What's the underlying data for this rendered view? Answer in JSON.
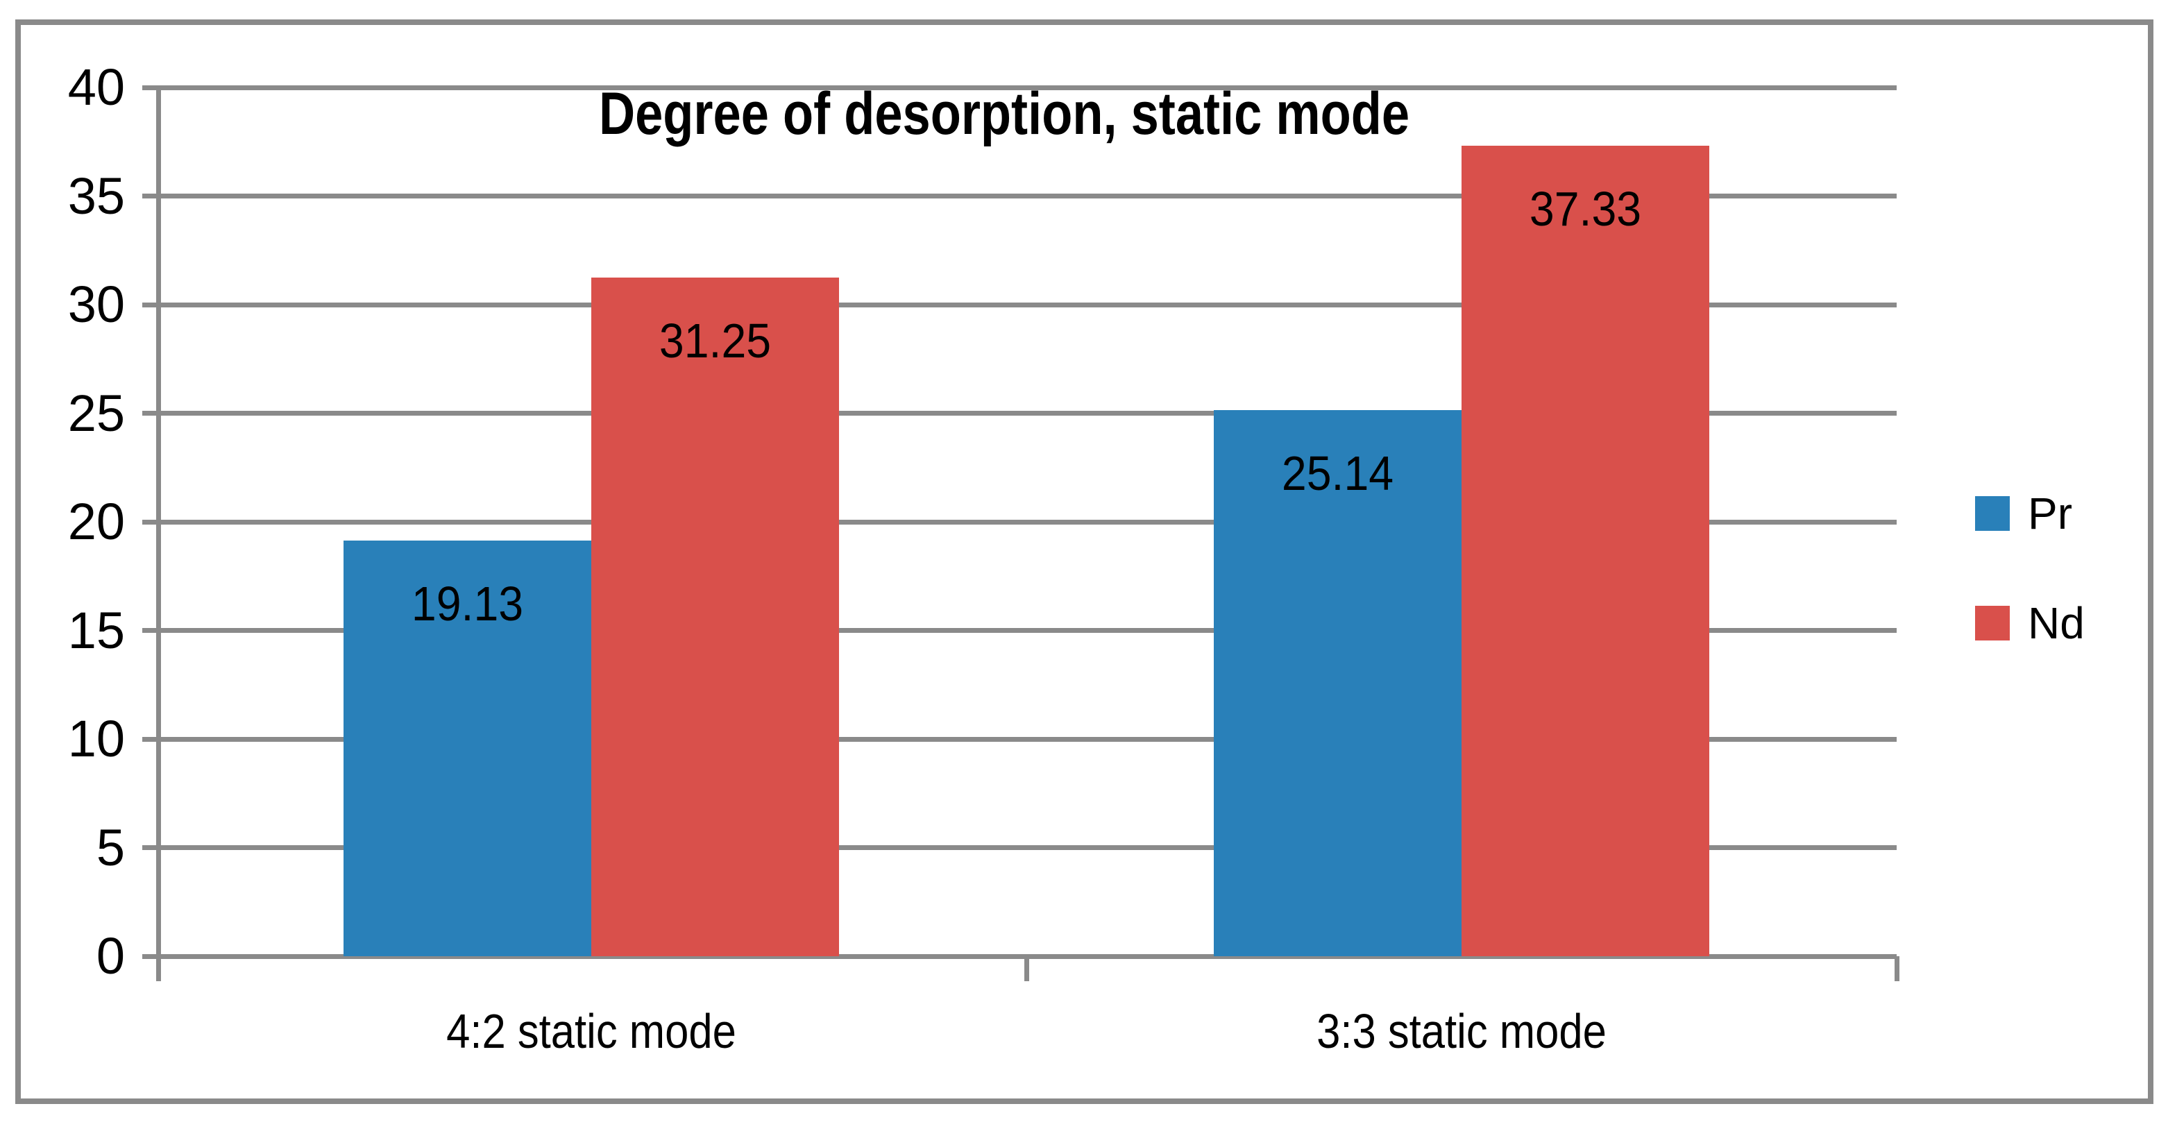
{
  "chart_data": {
    "type": "bar",
    "title": "Degree of desorption, static mode",
    "categories": [
      "4:2 static mode",
      "3:3 static mode"
    ],
    "series": [
      {
        "name": "Pr",
        "color": "#2980B9",
        "values": [
          19.13,
          25.14
        ],
        "labels": [
          "19.13",
          "25.14"
        ]
      },
      {
        "name": "Nd",
        "color": "#D9504B",
        "values": [
          31.25,
          37.33
        ],
        "labels": [
          "31.25",
          "37.33"
        ]
      }
    ],
    "ylabel": "",
    "xlabel": "",
    "ylim": [
      0,
      40
    ],
    "yticks": [
      0,
      5,
      10,
      15,
      20,
      25,
      30,
      35,
      40
    ],
    "grid": true,
    "legend_position": "right",
    "colors": {
      "axis": "#8A8A8A",
      "gridline": "#8A8A8A",
      "border": "#8A8A8A",
      "text": "#000000",
      "background": "#FFFFFF"
    }
  }
}
